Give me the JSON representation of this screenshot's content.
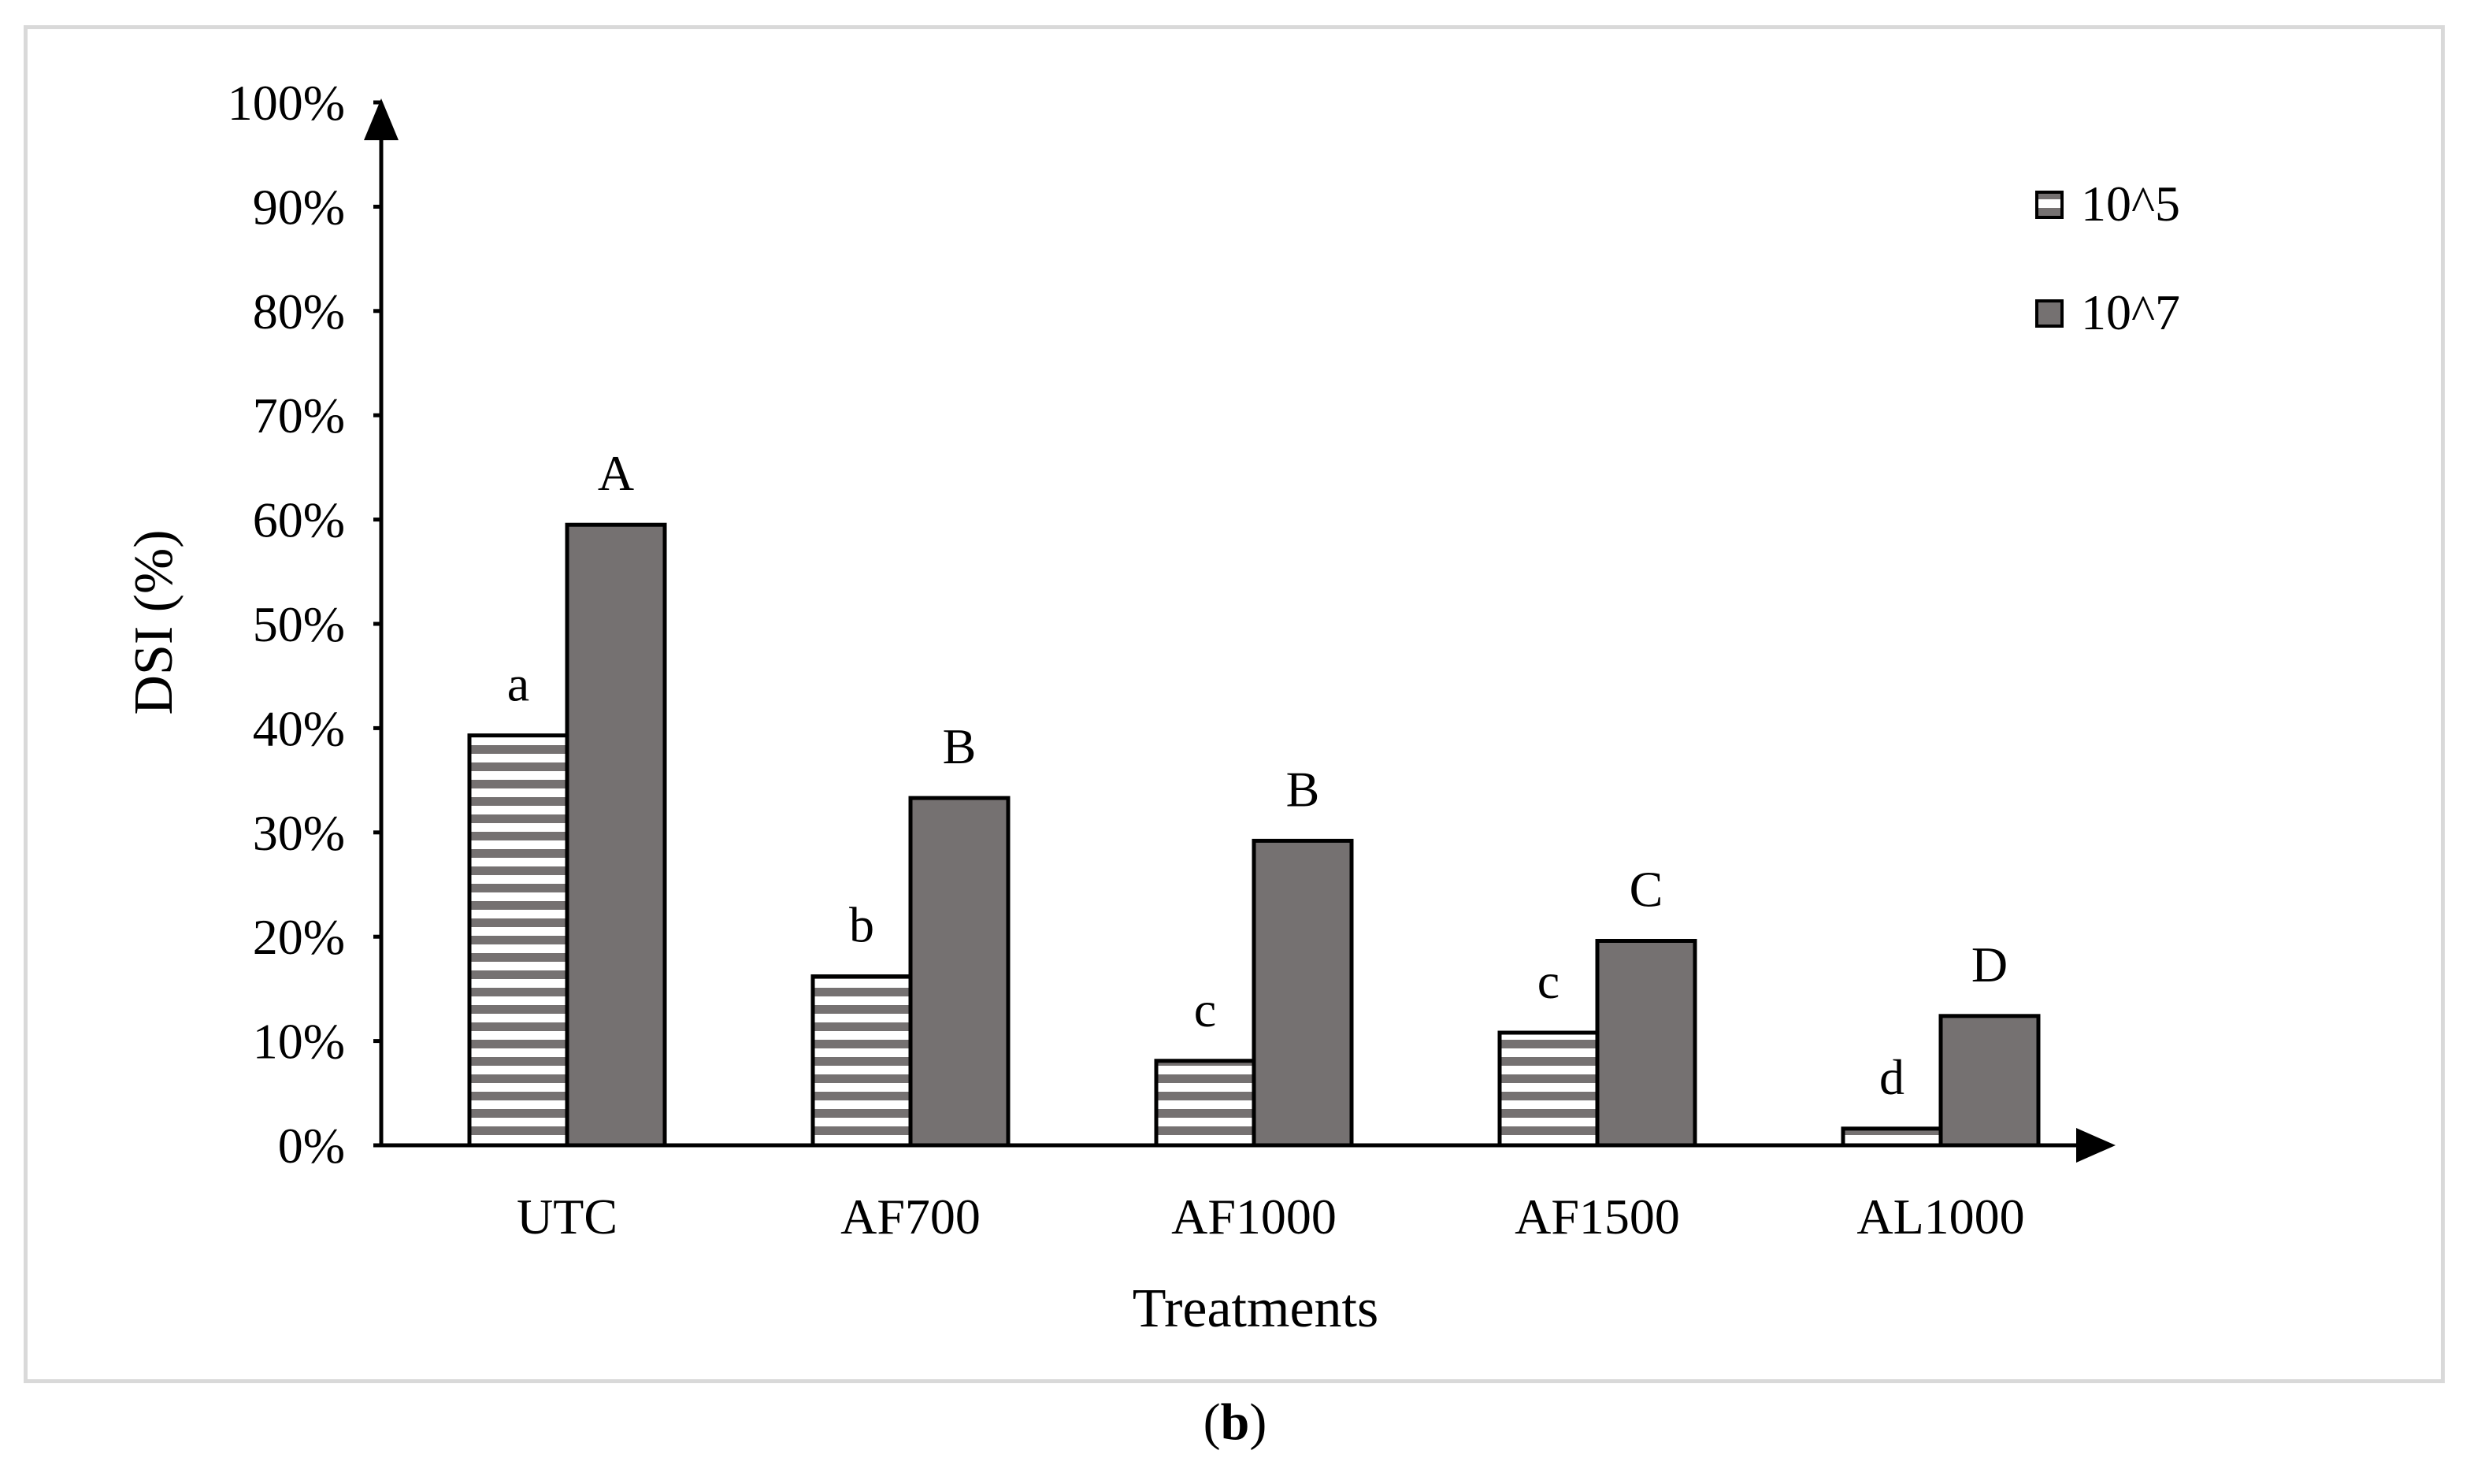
{
  "chart_data": {
    "type": "bar",
    "title": "",
    "xlabel": "Treatments",
    "ylabel": "DSI (%)",
    "ylim": [
      0,
      100
    ],
    "yticks": [
      "0%",
      "10%",
      "20%",
      "30%",
      "40%",
      "50%",
      "60%",
      "70%",
      "80%",
      "90%",
      "100%"
    ],
    "categories": [
      "UTC",
      "AF700",
      "AF1000",
      "AF1500",
      "AL1000"
    ],
    "series": [
      {
        "name": "10^5",
        "values": [
          39.3,
          16.2,
          8.1,
          10.8,
          1.6
        ],
        "letters": [
          "a",
          "b",
          "c",
          "c",
          "d"
        ],
        "pattern": "horizontal-stripes",
        "color": "#757171"
      },
      {
        "name": "10^7",
        "values": [
          59.5,
          33.3,
          29.2,
          19.6,
          12.4
        ],
        "letters": [
          "A",
          "B",
          "B",
          "C",
          "D"
        ],
        "pattern": "solid",
        "color": "#757171"
      }
    ],
    "legend_position": "top-right",
    "grid": false
  },
  "caption": {
    "open": "(",
    "label": "b",
    "close": ")"
  }
}
